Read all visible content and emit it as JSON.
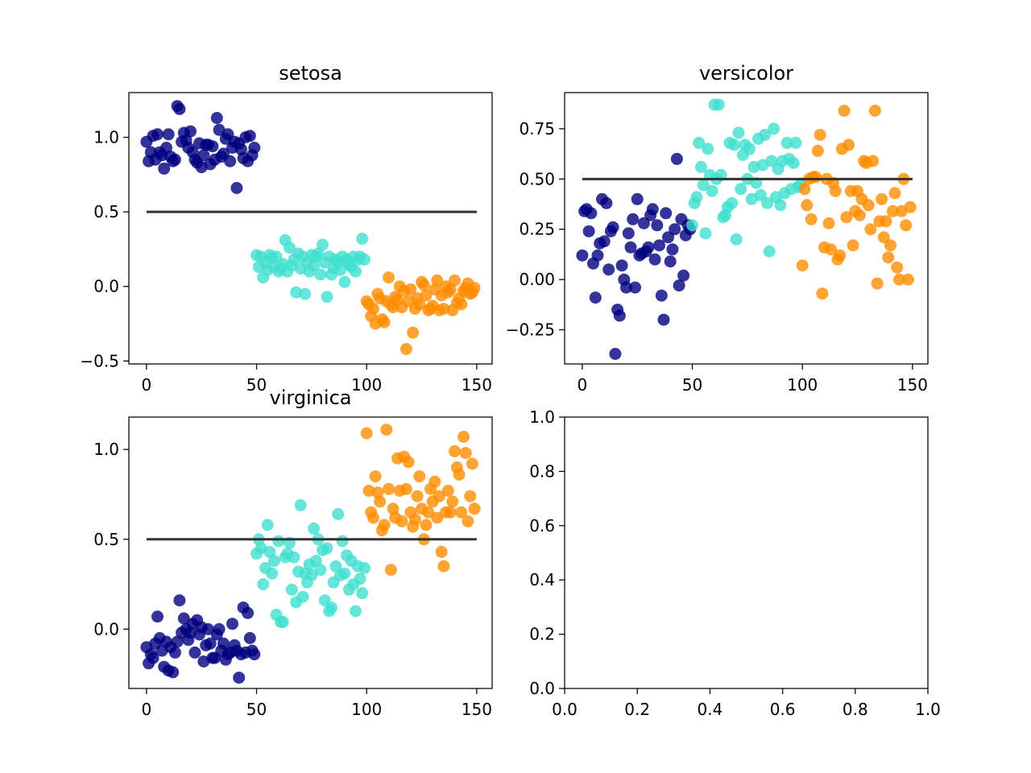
{
  "colors": {
    "setosa": "#000080",
    "versicolor": "#40e0d0",
    "virginica": "#ff8c00",
    "reference": "#333333"
  },
  "chart_data": [
    {
      "type": "scatter",
      "title": "setosa",
      "xlim": [
        -8,
        157
      ],
      "ylim": [
        -0.52,
        1.3
      ],
      "xticks": [
        0,
        50,
        100,
        150
      ],
      "xtick_labels": [
        "0",
        "50",
        "100",
        "150"
      ],
      "yticks": [
        -0.5,
        0.0,
        0.5,
        1.0
      ],
      "ytick_labels": [
        "−0.5",
        "0.0",
        "0.5",
        "1.0"
      ],
      "reference_line": {
        "y": 0.5,
        "x_from": 0,
        "x_to": 150
      },
      "series": [
        {
          "name": "setosa",
          "color": "#000080",
          "x": [
            0,
            1,
            2,
            3,
            4,
            5,
            6,
            7,
            8,
            9,
            10,
            11,
            12,
            13,
            14,
            15,
            16,
            17,
            18,
            19,
            20,
            21,
            22,
            23,
            24,
            25,
            26,
            27,
            28,
            29,
            30,
            31,
            32,
            33,
            34,
            35,
            36,
            37,
            38,
            39,
            40,
            41,
            42,
            43,
            44,
            45,
            46,
            47,
            48,
            49
          ],
          "y": [
            0.97,
            0.84,
            0.9,
            1.01,
            0.85,
            1.02,
            0.9,
            0.88,
            0.79,
            0.93,
            1.02,
            0.87,
            0.84,
            0.85,
            1.21,
            1.19,
            0.97,
            1.03,
            0.98,
            0.93,
            1.04,
            0.9,
            0.85,
            0.83,
            0.96,
            0.8,
            0.88,
            0.95,
            0.95,
            0.82,
            0.94,
            0.85,
            1.13,
            1.05,
            0.87,
            0.89,
            0.99,
            1.02,
            0.84,
            0.93,
            0.97,
            0.66,
            0.96,
            0.92,
            0.86,
            1.0,
            0.84,
            1.01,
            0.88,
            0.93
          ]
        },
        {
          "name": "versicolor",
          "color": "#40e0d0",
          "x": [
            50,
            51,
            52,
            53,
            54,
            55,
            56,
            57,
            58,
            59,
            60,
            61,
            62,
            63,
            64,
            65,
            66,
            67,
            68,
            69,
            70,
            71,
            72,
            73,
            74,
            75,
            76,
            77,
            78,
            79,
            80,
            81,
            82,
            83,
            84,
            85,
            86,
            87,
            88,
            89,
            90,
            91,
            92,
            93,
            94,
            95,
            96,
            97,
            98,
            99
          ],
          "y": [
            0.21,
            0.13,
            0.2,
            0.06,
            0.16,
            0.11,
            0.21,
            0.19,
            0.13,
            0.2,
            0.1,
            0.12,
            0.15,
            0.31,
            0.1,
            0.26,
            0.14,
            0.18,
            -0.04,
            0.22,
            0.12,
            0.2,
            -0.05,
            0.16,
            0.1,
            0.21,
            0.14,
            0.2,
            0.22,
            0.08,
            0.28,
            0.16,
            -0.07,
            0.2,
            0.08,
            0.12,
            0.18,
            0.16,
            0.11,
            0.2,
            0.03,
            0.18,
            0.15,
            0.13,
            0.2,
            0.1,
            0.18,
            0.2,
            0.32,
            0.18
          ]
        },
        {
          "name": "virginica",
          "color": "#ff8c00",
          "x": [
            100,
            101,
            102,
            103,
            104,
            105,
            106,
            107,
            108,
            109,
            110,
            111,
            112,
            113,
            114,
            115,
            116,
            117,
            118,
            119,
            120,
            121,
            122,
            123,
            124,
            125,
            126,
            127,
            128,
            129,
            130,
            131,
            132,
            133,
            134,
            135,
            136,
            137,
            138,
            139,
            140,
            141,
            142,
            143,
            144,
            145,
            146,
            147,
            148,
            149
          ],
          "y": [
            -0.1,
            -0.12,
            -0.2,
            -0.15,
            -0.25,
            -0.05,
            -0.08,
            -0.22,
            -0.24,
            -0.1,
            0.06,
            -0.12,
            -0.14,
            -0.07,
            -0.09,
            0.0,
            -0.14,
            -0.03,
            -0.42,
            -0.1,
            -0.02,
            -0.31,
            -0.15,
            -0.08,
            -0.12,
            0.03,
            0.01,
            -0.06,
            -0.16,
            -0.15,
            -0.13,
            -0.02,
            0.04,
            -0.16,
            -0.06,
            -0.15,
            0.0,
            -0.04,
            -0.02,
            -0.16,
            0.04,
            -0.11,
            -0.08,
            -0.12,
            -0.03,
            -0.01,
            0.02,
            -0.05,
            -0.04,
            -0.01
          ]
        }
      ]
    },
    {
      "type": "scatter",
      "title": "versicolor",
      "xlim": [
        -8,
        157
      ],
      "ylim": [
        -0.42,
        0.93
      ],
      "xticks": [
        0,
        50,
        100,
        150
      ],
      "xtick_labels": [
        "0",
        "50",
        "100",
        "150"
      ],
      "yticks": [
        -0.25,
        0.0,
        0.25,
        0.5,
        0.75
      ],
      "ytick_labels": [
        "−0.25",
        "0.00",
        "0.25",
        "0.50",
        "0.75"
      ],
      "reference_line": {
        "y": 0.5,
        "x_from": 0,
        "x_to": 150
      },
      "series": [
        {
          "name": "setosa",
          "color": "#000080",
          "x": [
            0,
            1,
            2,
            3,
            4,
            5,
            6,
            7,
            8,
            9,
            10,
            11,
            12,
            13,
            14,
            15,
            16,
            17,
            18,
            19,
            20,
            21,
            22,
            23,
            24,
            25,
            26,
            27,
            28,
            29,
            30,
            31,
            32,
            33,
            34,
            35,
            36,
            37,
            38,
            39,
            40,
            41,
            42,
            43,
            44,
            45,
            46,
            47,
            48,
            49
          ],
          "y": [
            0.12,
            0.34,
            0.35,
            0.24,
            0.33,
            0.08,
            -0.09,
            0.12,
            0.18,
            0.4,
            0.19,
            0.38,
            0.05,
            0.24,
            0.26,
            -0.37,
            -0.15,
            -0.18,
            0.07,
            0.0,
            -0.04,
            0.23,
            0.16,
            0.3,
            -0.04,
            0.4,
            0.12,
            0.13,
            0.28,
            0.14,
            0.16,
            0.32,
            0.35,
            0.1,
            0.27,
            0.17,
            -0.08,
            -0.2,
            0.33,
            0.21,
            0.09,
            0.15,
            0.25,
            0.6,
            -0.03,
            0.3,
            0.02,
            0.22,
            0.27,
            0.25
          ]
        },
        {
          "name": "versicolor",
          "color": "#40e0d0",
          "x": [
            50,
            51,
            52,
            53,
            54,
            55,
            56,
            57,
            58,
            59,
            60,
            61,
            62,
            63,
            64,
            65,
            66,
            67,
            68,
            69,
            70,
            71,
            72,
            73,
            74,
            75,
            76,
            77,
            78,
            79,
            80,
            81,
            82,
            83,
            84,
            85,
            86,
            87,
            88,
            89,
            90,
            91,
            92,
            93,
            94,
            95,
            96,
            97,
            98,
            99
          ],
          "y": [
            0.27,
            0.38,
            0.41,
            0.68,
            0.56,
            0.47,
            0.23,
            0.65,
            0.52,
            0.44,
            0.87,
            0.5,
            0.87,
            0.52,
            0.31,
            0.32,
            0.36,
            0.68,
            0.38,
            0.67,
            0.2,
            0.73,
            0.45,
            0.62,
            0.67,
            0.5,
            0.65,
            0.4,
            0.56,
            0.48,
            0.7,
            0.42,
            0.57,
            0.72,
            0.38,
            0.14,
            0.59,
            0.75,
            0.41,
            0.55,
            0.37,
            0.59,
            0.43,
            0.68,
            0.6,
            0.45,
            0.58,
            0.68,
            0.46,
            0.47
          ]
        },
        {
          "name": "virginica",
          "color": "#ff8c00",
          "x": [
            100,
            101,
            102,
            103,
            104,
            105,
            106,
            107,
            108,
            109,
            110,
            111,
            112,
            113,
            114,
            115,
            116,
            117,
            118,
            119,
            120,
            121,
            122,
            123,
            124,
            125,
            126,
            127,
            128,
            129,
            130,
            131,
            132,
            133,
            134,
            135,
            136,
            137,
            138,
            139,
            140,
            141,
            142,
            143,
            144,
            145,
            146,
            147,
            148,
            149
          ],
          "y": [
            0.07,
            0.45,
            0.37,
            0.5,
            0.3,
            0.51,
            0.51,
            0.64,
            0.72,
            -0.07,
            0.16,
            0.5,
            0.28,
            0.15,
            0.48,
            0.44,
            0.1,
            0.12,
            0.65,
            0.84,
            0.31,
            0.67,
            0.44,
            0.17,
            0.34,
            0.44,
            0.32,
            0.4,
            0.59,
            0.58,
            0.37,
            0.25,
            0.59,
            0.84,
            -0.02,
            0.29,
            0.4,
            0.21,
            0.29,
            0.11,
            0.17,
            0.34,
            0.43,
            0.06,
            0.0,
            0.34,
            0.5,
            0.27,
            0.0,
            0.36
          ]
        }
      ]
    },
    {
      "type": "scatter",
      "title": "virginica",
      "xlim": [
        -8,
        157
      ],
      "ylim": [
        -0.33,
        1.18
      ],
      "xticks": [
        0,
        50,
        100,
        150
      ],
      "xtick_labels": [
        "0",
        "50",
        "100",
        "150"
      ],
      "yticks": [
        0.0,
        0.5,
        1.0
      ],
      "ytick_labels": [
        "0.0",
        "0.5",
        "1.0"
      ],
      "reference_line": {
        "y": 0.5,
        "x_from": 0,
        "x_to": 150
      },
      "series": [
        {
          "name": "setosa",
          "color": "#000080",
          "x": [
            0,
            1,
            2,
            3,
            4,
            5,
            6,
            7,
            8,
            9,
            10,
            11,
            12,
            13,
            14,
            15,
            16,
            17,
            18,
            19,
            20,
            21,
            22,
            23,
            24,
            25,
            26,
            27,
            28,
            29,
            30,
            31,
            32,
            33,
            34,
            35,
            36,
            37,
            38,
            39,
            40,
            41,
            42,
            43,
            44,
            45,
            46,
            47,
            48,
            49
          ],
          "y": [
            -0.1,
            -0.19,
            -0.14,
            -0.16,
            -0.08,
            0.07,
            -0.05,
            -0.12,
            -0.21,
            -0.07,
            -0.23,
            -0.1,
            -0.24,
            -0.13,
            -0.07,
            0.16,
            -0.02,
            0.06,
            0.0,
            -0.06,
            -0.02,
            0.03,
            -0.13,
            0.05,
            -0.03,
            0.01,
            -0.18,
            -0.09,
            0.0,
            -0.08,
            -0.16,
            -0.16,
            -0.03,
            0.0,
            -0.12,
            -0.08,
            -0.17,
            -0.14,
            -0.13,
            0.03,
            -0.09,
            -0.12,
            -0.27,
            -0.14,
            0.12,
            -0.13,
            0.09,
            -0.05,
            -0.12,
            -0.14
          ]
        },
        {
          "name": "versicolor",
          "color": "#40e0d0",
          "x": [
            50,
            51,
            52,
            53,
            54,
            55,
            56,
            57,
            58,
            59,
            60,
            61,
            62,
            63,
            64,
            65,
            66,
            67,
            68,
            69,
            70,
            71,
            72,
            73,
            74,
            75,
            76,
            77,
            78,
            79,
            80,
            81,
            82,
            83,
            84,
            85,
            86,
            87,
            88,
            89,
            90,
            91,
            92,
            93,
            94,
            95,
            96,
            97,
            98,
            99
          ],
          "y": [
            0.42,
            0.5,
            0.45,
            0.25,
            0.34,
            0.58,
            0.43,
            0.31,
            0.38,
            0.08,
            0.49,
            0.04,
            0.04,
            0.4,
            0.42,
            0.48,
            0.22,
            0.4,
            0.15,
            0.32,
            0.69,
            0.18,
            0.31,
            0.26,
            0.36,
            0.3,
            0.56,
            0.38,
            0.5,
            0.33,
            0.44,
            0.16,
            0.45,
            0.1,
            0.12,
            0.26,
            0.35,
            0.64,
            0.3,
            0.49,
            0.31,
            0.41,
            0.22,
            0.38,
            0.25,
            0.1,
            0.35,
            0.28,
            0.2,
            0.34
          ]
        },
        {
          "name": "virginica",
          "color": "#ff8c00",
          "x": [
            100,
            101,
            102,
            103,
            104,
            105,
            106,
            107,
            108,
            109,
            110,
            111,
            112,
            113,
            114,
            115,
            116,
            117,
            118,
            119,
            120,
            121,
            122,
            123,
            124,
            125,
            126,
            127,
            128,
            129,
            130,
            131,
            132,
            133,
            134,
            135,
            136,
            137,
            138,
            139,
            140,
            141,
            142,
            143,
            144,
            145,
            146,
            147,
            148,
            149
          ],
          "y": [
            1.09,
            0.77,
            0.65,
            0.62,
            0.85,
            0.76,
            0.71,
            0.55,
            0.58,
            1.11,
            0.78,
            0.33,
            0.67,
            0.62,
            0.95,
            0.77,
            0.6,
            0.96,
            0.78,
            0.93,
            0.65,
            0.57,
            0.61,
            0.74,
            0.85,
            0.67,
            0.5,
            0.58,
            0.65,
            0.78,
            0.71,
            0.82,
            0.62,
            0.74,
            0.43,
            0.35,
            0.65,
            0.77,
            0.65,
            0.71,
            0.99,
            0.9,
            0.86,
            0.65,
            1.07,
            0.98,
            0.6,
            0.74,
            0.92,
            0.67
          ]
        }
      ]
    },
    {
      "type": "scatter",
      "title": "",
      "xlim": [
        0,
        1
      ],
      "ylim": [
        0,
        1
      ],
      "xticks": [
        0.0,
        0.2,
        0.4,
        0.6,
        0.8,
        1.0
      ],
      "xtick_labels": [
        "0.0",
        "0.2",
        "0.4",
        "0.6",
        "0.8",
        "1.0"
      ],
      "yticks": [
        0.0,
        0.2,
        0.4,
        0.6,
        0.8,
        1.0
      ],
      "ytick_labels": [
        "0.0",
        "0.2",
        "0.4",
        "0.6",
        "0.8",
        "1.0"
      ],
      "series": []
    }
  ]
}
